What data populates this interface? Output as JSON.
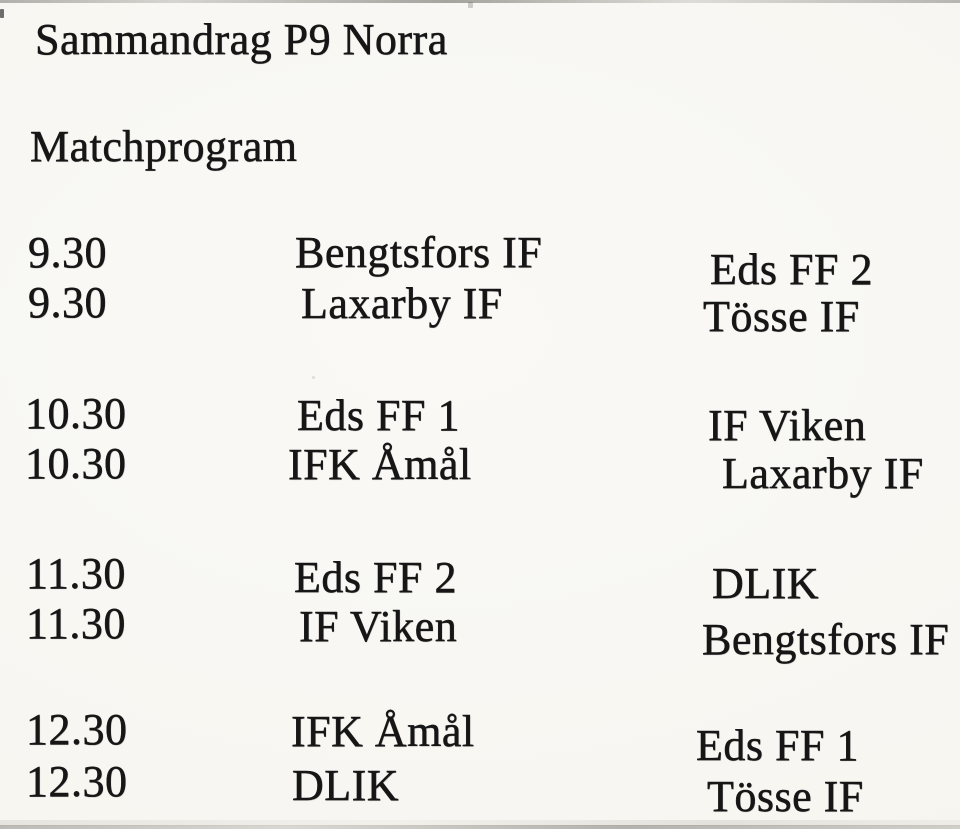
{
  "document": {
    "title": "Sammandrag P9 Norra",
    "subtitle": "Matchprogram"
  },
  "matches": [
    {
      "time": "9.30",
      "home": "Bengtsfors IF",
      "away": "Eds FF 2"
    },
    {
      "time": "9.30",
      "home": "Laxarby IF",
      "away": "Tösse IF"
    },
    {
      "time": "10.30",
      "home": "Eds FF 1",
      "away": "IF Viken"
    },
    {
      "time": "10.30",
      "home": "IFK Åmål",
      "away": "Laxarby IF"
    },
    {
      "time": "11.30",
      "home": "Eds FF 2",
      "away": "DLIK"
    },
    {
      "time": "11.30",
      "home": "IF Viken",
      "away": "Bengtsfors IF"
    },
    {
      "time": "12.30",
      "home": "IFK Åmål",
      "away": "Eds FF 1"
    },
    {
      "time": "12.30",
      "home": "DLIK",
      "away": "Tösse IF"
    }
  ],
  "colors": {
    "paper": "#f7f6f1",
    "ink": "#161616"
  }
}
